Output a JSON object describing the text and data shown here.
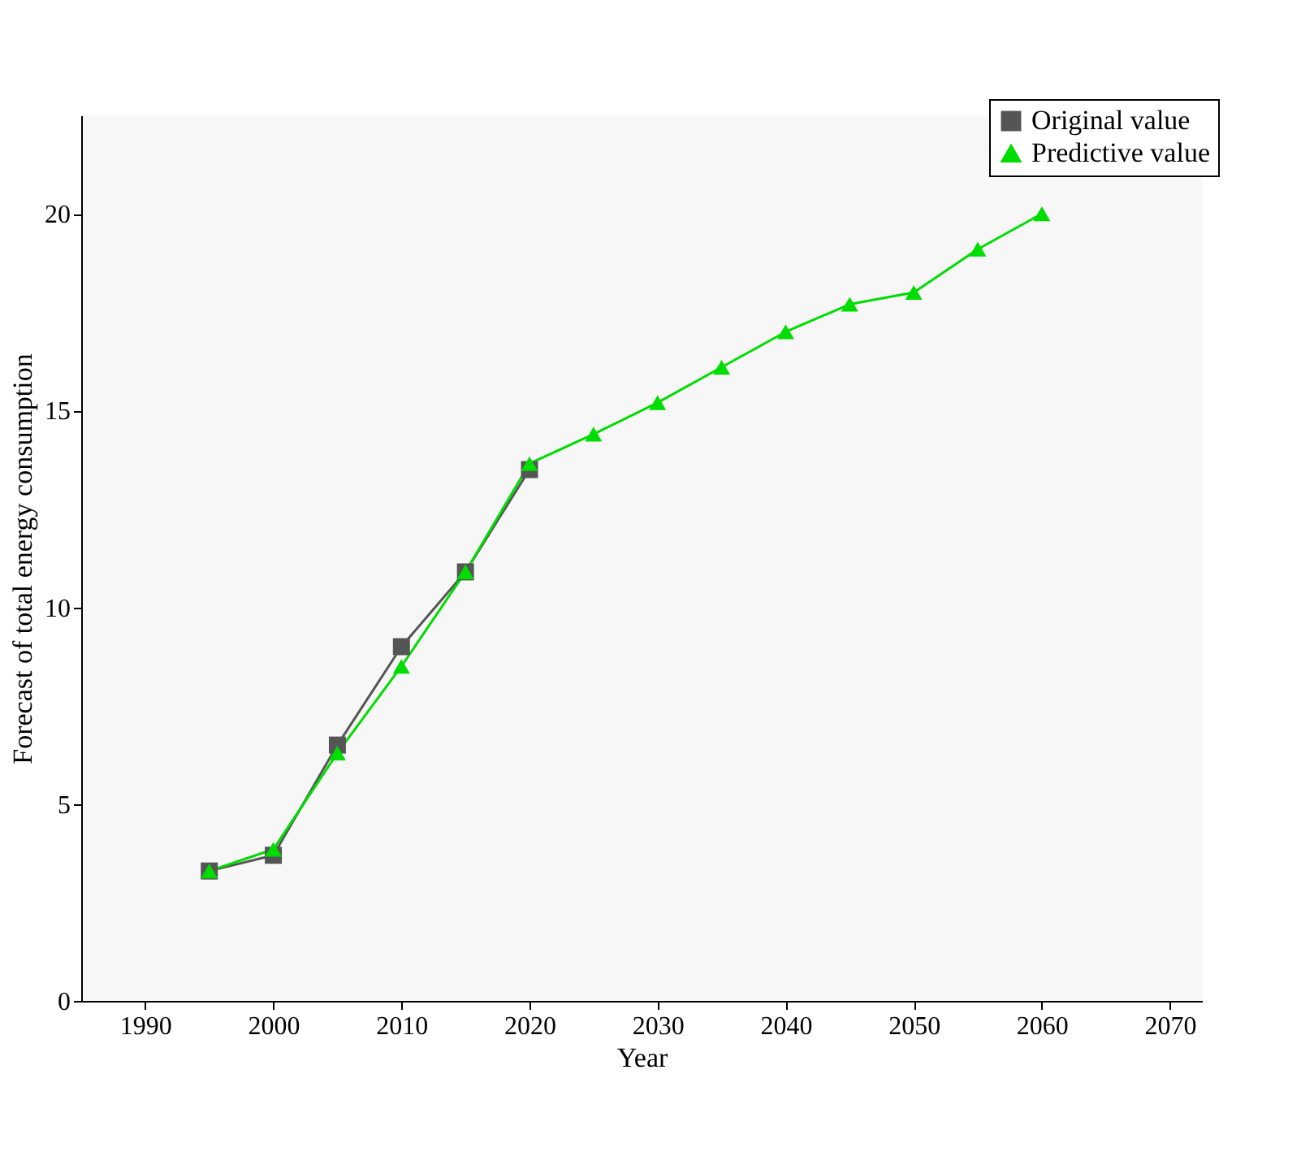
{
  "chart_data": {
    "type": "line",
    "xlabel": "Year",
    "ylabel": "Forecast of total energy consumption",
    "xlim": [
      1985,
      2072.5
    ],
    "xticks": [
      1990,
      2000,
      2010,
      2020,
      2030,
      2040,
      2050,
      2060,
      2070
    ],
    "ylim": [
      0,
      22.5
    ],
    "yticks": [
      0,
      5,
      10,
      15,
      20
    ],
    "grid": false,
    "legend": "top right",
    "series": [
      {
        "name": "Original value",
        "color": "#555555",
        "marker": "square",
        "x": [
          1995,
          2000,
          2005,
          2010,
          2015,
          2020
        ],
        "values": [
          3.3,
          3.7,
          6.5,
          9.0,
          10.9,
          13.5
        ]
      },
      {
        "name": "Predictive value",
        "color": "#00dd00",
        "marker": "triangle",
        "x": [
          1995,
          2000,
          2005,
          2010,
          2015,
          2020,
          2025,
          2030,
          2035,
          2040,
          2045,
          2050,
          2055,
          2060
        ],
        "values": [
          3.3,
          3.85,
          6.3,
          8.5,
          10.9,
          13.65,
          14.4,
          15.2,
          16.1,
          17.0,
          17.7,
          18.0,
          19.1,
          20.0
        ]
      }
    ]
  }
}
